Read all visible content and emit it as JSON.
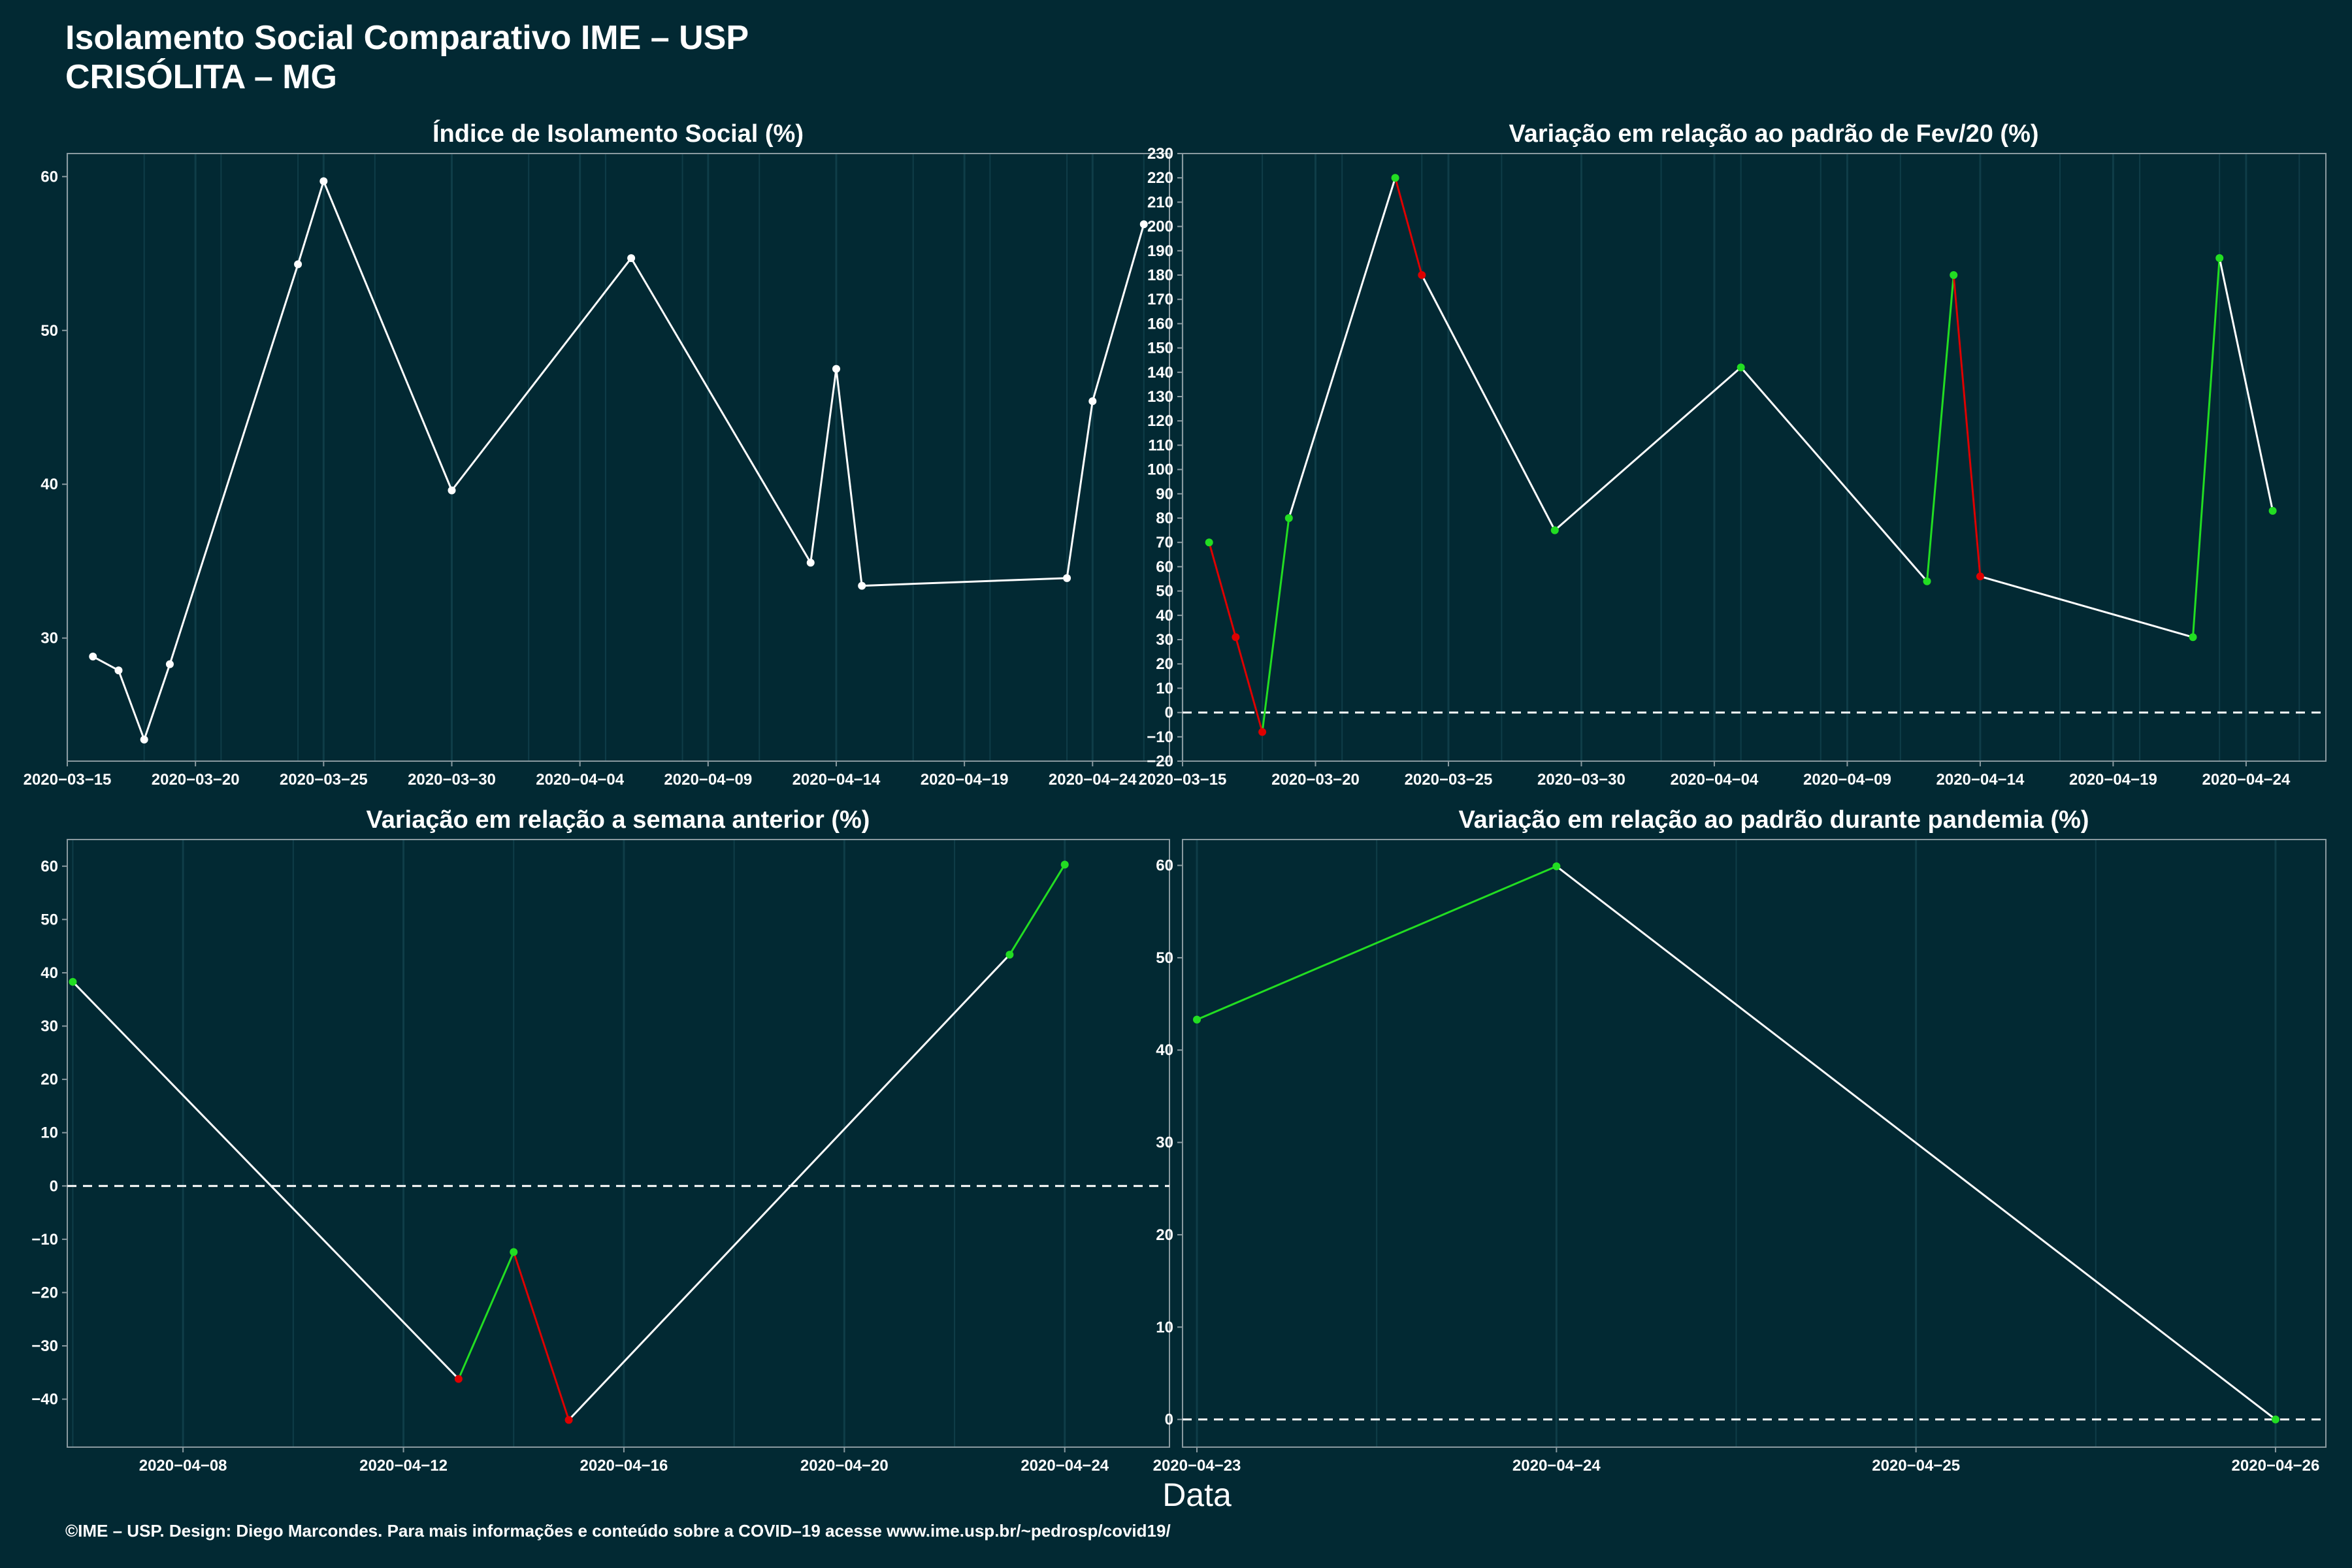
{
  "title": {
    "line1": "Isolamento Social Comparativo IME – USP",
    "line2": "CRISÓLITA – MG"
  },
  "xlabel": "Data",
  "caption": "©IME – USP. Design: Diego Marcondes. Para mais informações e conteúdo sobre a COVID–19 acesse www.ime.usp.br/~pedrosp/covid19/",
  "colors": {
    "background": "#022933",
    "line": "#ffffff",
    "positive": "#22dd22",
    "negative": "#dd0000",
    "grid": "#0f3d48",
    "axis": "#8a9aa0"
  },
  "chart_data": [
    {
      "type": "line",
      "title": "Índice de Isolamento Social (%)",
      "x": [
        "2020-03-16",
        "2020-03-17",
        "2020-03-18",
        "2020-03-19",
        "2020-03-24",
        "2020-03-25",
        "2020-03-30",
        "2020-04-06",
        "2020-04-13",
        "2020-04-14",
        "2020-04-15",
        "2020-04-23",
        "2020-04-24",
        "2020-04-26"
      ],
      "y": [
        28.8,
        27.9,
        23.4,
        28.3,
        54.3,
        59.7,
        39.6,
        54.7,
        34.9,
        47.5,
        33.4,
        33.9,
        45.4,
        56.9
      ],
      "xlim": [
        "2020-03-15",
        "2020-04-27"
      ],
      "ylim": [
        22,
        61.5
      ],
      "xticks": [
        "2020-03-15",
        "2020-03-20",
        "2020-03-25",
        "2020-03-30",
        "2020-04-04",
        "2020-04-09",
        "2020-04-14",
        "2020-04-19",
        "2020-04-24"
      ],
      "yticks": [
        30,
        40,
        50,
        60
      ],
      "color_mode": "white",
      "zero_line": false,
      "grid": true
    },
    {
      "type": "line",
      "title": "Variação em relação ao padrão de Fev/20 (%)",
      "x": [
        "2020-03-16",
        "2020-03-17",
        "2020-03-18",
        "2020-03-19",
        "2020-03-23",
        "2020-03-24",
        "2020-03-29",
        "2020-04-05",
        "2020-04-12",
        "2020-04-13",
        "2020-04-14",
        "2020-04-22",
        "2020-04-23",
        "2020-04-25"
      ],
      "y": [
        70,
        31,
        -8,
        80,
        220,
        180,
        75,
        142,
        54,
        180,
        56,
        31,
        187,
        83
      ],
      "xlim": [
        "2020-03-15",
        "2020-04-27"
      ],
      "ylim": [
        -20,
        230
      ],
      "xticks": [
        "2020-03-15",
        "2020-03-20",
        "2020-03-25",
        "2020-03-30",
        "2020-04-04",
        "2020-04-09",
        "2020-04-14",
        "2020-04-19",
        "2020-04-24"
      ],
      "yticks": [
        -20,
        -10,
        0,
        10,
        20,
        30,
        40,
        50,
        60,
        70,
        80,
        90,
        100,
        110,
        120,
        130,
        140,
        150,
        160,
        170,
        180,
        190,
        200,
        210,
        220,
        230
      ],
      "color_mode": "daily",
      "zero_line": true,
      "grid": true
    },
    {
      "type": "line",
      "title": "Variação em relação a semana anterior (%)",
      "x": [
        "2020-04-06",
        "2020-04-13",
        "2020-04-14",
        "2020-04-15",
        "2020-04-23",
        "2020-04-24"
      ],
      "y": [
        38.3,
        -36.2,
        -12.4,
        -43.9,
        43.4,
        60.3
      ],
      "xlim": [
        "2020-04-05.9",
        "2020-04-25.9"
      ],
      "ylim": [
        -49,
        65
      ],
      "xticks": [
        "2020-04-08",
        "2020-04-12",
        "2020-04-16",
        "2020-04-20",
        "2020-04-24"
      ],
      "yticks": [
        -40,
        -30,
        -20,
        -10,
        0,
        10,
        20,
        30,
        40,
        50,
        60
      ],
      "color_mode": "daily",
      "zero_line": true,
      "grid": true
    },
    {
      "type": "line",
      "title": "Variação em relação ao padrão durante pandemia (%)",
      "x": [
        "2020-04-23",
        "2020-04-24",
        "2020-04-26"
      ],
      "y": [
        43.3,
        59.9,
        0
      ],
      "xlim": [
        "2020-04-22.96",
        "2020-04-26.14"
      ],
      "ylim": [
        -3,
        62.8
      ],
      "xticks": [
        "2020-04-23",
        "2020-04-24",
        "2020-04-25",
        "2020-04-26"
      ],
      "yticks": [
        0,
        10,
        20,
        30,
        40,
        50,
        60
      ],
      "color_mode": "daily",
      "zero_line": true,
      "grid": true
    }
  ]
}
